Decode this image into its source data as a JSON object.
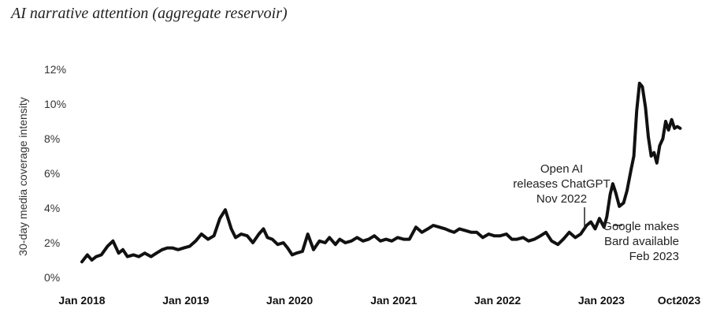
{
  "chart_data": {
    "type": "line",
    "title": "AI narrative attention (aggregate reservoir)",
    "xlabel": "",
    "ylabel": "30-day media coverage intensity",
    "y_unit": "%",
    "ylim": [
      0,
      12
    ],
    "y_ticks": [
      0,
      2,
      4,
      6,
      8,
      10,
      12
    ],
    "y_tick_labels": [
      "0%",
      "2%",
      "4%",
      "6%",
      "8%",
      "10%",
      "12%"
    ],
    "x_range": [
      "2018-01",
      "2023-10"
    ],
    "x_ticks": [
      {
        "date": "2018-01",
        "label": "Jan 2018"
      },
      {
        "date": "2019-01",
        "label": "Jan 2019"
      },
      {
        "date": "2020-01",
        "label": "Jan 2020"
      },
      {
        "date": "2021-01",
        "label": "Jan 2021"
      },
      {
        "date": "2022-01",
        "label": "Jan 2022"
      },
      {
        "date": "2023-01",
        "label": "Jan 2023"
      },
      {
        "date": "2023-10",
        "label": "Oct2023"
      }
    ],
    "grid": false,
    "legend": "none",
    "color": "#111111",
    "x": [
      "2018-01-01",
      "2018-01-20",
      "2018-02-05",
      "2018-02-20",
      "2018-03-10",
      "2018-04-01",
      "2018-04-20",
      "2018-05-10",
      "2018-05-25",
      "2018-06-10",
      "2018-07-01",
      "2018-07-20",
      "2018-08-10",
      "2018-09-01",
      "2018-09-20",
      "2018-10-10",
      "2018-10-28",
      "2018-11-15",
      "2018-12-05",
      "2018-12-25",
      "2019-01-15",
      "2019-02-05",
      "2019-02-25",
      "2019-03-20",
      "2019-04-10",
      "2019-05-01",
      "2019-05-20",
      "2019-06-10",
      "2019-06-25",
      "2019-07-15",
      "2019-08-05",
      "2019-08-25",
      "2019-09-15",
      "2019-10-01",
      "2019-10-15",
      "2019-11-01",
      "2019-11-20",
      "2019-12-10",
      "2019-12-25",
      "2020-01-10",
      "2020-01-25",
      "2020-02-15",
      "2020-03-05",
      "2020-03-25",
      "2020-04-15",
      "2020-05-05",
      "2020-05-20",
      "2020-06-10",
      "2020-06-25",
      "2020-07-15",
      "2020-08-05",
      "2020-08-25",
      "2020-09-15",
      "2020-10-05",
      "2020-10-25",
      "2020-11-15",
      "2020-12-05",
      "2020-12-25",
      "2021-01-15",
      "2021-02-05",
      "2021-02-25",
      "2021-03-20",
      "2021-04-10",
      "2021-05-01",
      "2021-05-20",
      "2021-06-10",
      "2021-07-01",
      "2021-07-15",
      "2021-08-01",
      "2021-08-20",
      "2021-09-10",
      "2021-10-01",
      "2021-10-20",
      "2021-11-10",
      "2021-12-01",
      "2021-12-20",
      "2022-01-10",
      "2022-02-01",
      "2022-02-20",
      "2022-03-10",
      "2022-04-01",
      "2022-04-20",
      "2022-05-10",
      "2022-06-01",
      "2022-06-20",
      "2022-07-10",
      "2022-08-01",
      "2022-08-20",
      "2022-09-10",
      "2022-10-01",
      "2022-10-20",
      "2022-11-10",
      "2022-11-25",
      "2022-12-10",
      "2022-12-25",
      "2023-01-10",
      "2023-01-20",
      "2023-02-01",
      "2023-02-10",
      "2023-02-20",
      "2023-03-05",
      "2023-03-20",
      "2023-04-01",
      "2023-04-15",
      "2023-04-25",
      "2023-05-05",
      "2023-05-15",
      "2023-05-25",
      "2023-06-05",
      "2023-06-15",
      "2023-06-25",
      "2023-07-05",
      "2023-07-15",
      "2023-07-25",
      "2023-08-05",
      "2023-08-15",
      "2023-08-25",
      "2023-09-05",
      "2023-09-15",
      "2023-09-25",
      "2023-10-05"
    ],
    "values": [
      0.9,
      1.3,
      1.0,
      1.2,
      1.3,
      1.8,
      2.1,
      1.4,
      1.6,
      1.2,
      1.3,
      1.2,
      1.4,
      1.2,
      1.4,
      1.6,
      1.7,
      1.7,
      1.6,
      1.7,
      1.8,
      2.1,
      2.5,
      2.2,
      2.4,
      3.4,
      3.9,
      2.8,
      2.3,
      2.5,
      2.4,
      2.0,
      2.5,
      2.8,
      2.3,
      2.2,
      1.9,
      2.0,
      1.7,
      1.3,
      1.4,
      1.5,
      2.5,
      1.6,
      2.1,
      2.0,
      2.3,
      1.9,
      2.2,
      2.0,
      2.1,
      2.3,
      2.1,
      2.2,
      2.4,
      2.1,
      2.2,
      2.1,
      2.3,
      2.2,
      2.2,
      2.9,
      2.6,
      2.8,
      3.0,
      2.9,
      2.8,
      2.7,
      2.6,
      2.8,
      2.7,
      2.6,
      2.6,
      2.3,
      2.5,
      2.4,
      2.4,
      2.5,
      2.2,
      2.2,
      2.3,
      2.1,
      2.2,
      2.4,
      2.6,
      2.1,
      1.9,
      2.2,
      2.6,
      2.3,
      2.5,
      3.0,
      3.2,
      2.8,
      3.4,
      2.9,
      3.5,
      4.8,
      5.4,
      4.9,
      4.1,
      4.3,
      5.0,
      6.2,
      7.0,
      9.6,
      11.2,
      11.0,
      9.8,
      8.1,
      7.0,
      7.2,
      6.6,
      7.6,
      8.0,
      9.0,
      8.5,
      9.1,
      8.6,
      8.7,
      8.6
    ]
  },
  "annotations": [
    {
      "id": "chatgpt",
      "lines": [
        "Open AI",
        "releases ChatGPT",
        "Nov 2022"
      ],
      "date": "2022-11-30"
    },
    {
      "id": "bard",
      "lines": [
        "Google makes",
        "Bard available",
        "Feb 2023"
      ],
      "date": "2023-02-06"
    }
  ]
}
